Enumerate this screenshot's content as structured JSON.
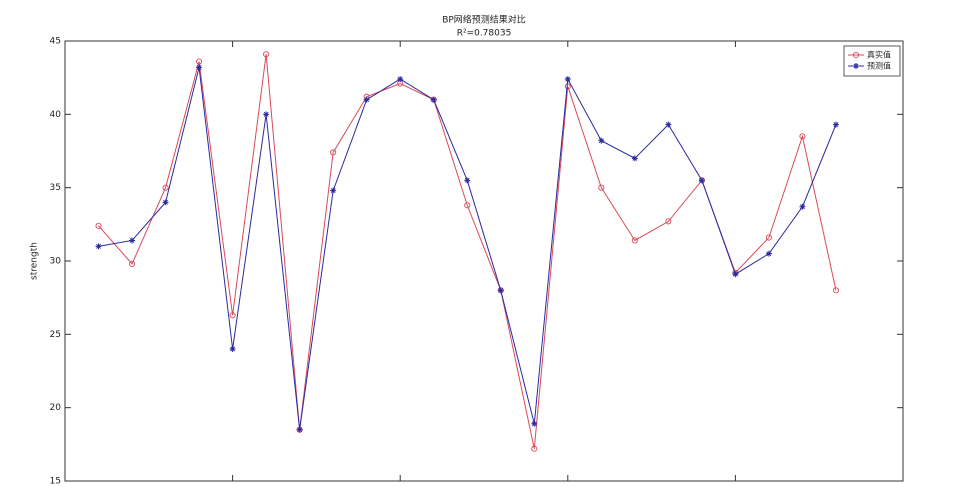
{
  "chart_data": {
    "type": "line",
    "title": "BP网络预测结果对比",
    "subtitle": "R²=0.78035",
    "y_label": "strength",
    "x": [
      1,
      2,
      3,
      4,
      5,
      6,
      7,
      8,
      9,
      10,
      11,
      12,
      13,
      14,
      15,
      16,
      17,
      18,
      19,
      20,
      21,
      22,
      23
    ],
    "series": [
      {
        "name": "真实值",
        "color": "#d9495a",
        "marker": "circle",
        "values": [
          32.4,
          29.8,
          35.0,
          43.6,
          26.3,
          44.1,
          18.5,
          37.4,
          41.2,
          42.1,
          41.0,
          33.8,
          28.0,
          17.2,
          41.9,
          35.0,
          31.4,
          32.7,
          35.5,
          29.2,
          31.6,
          38.5,
          28.0
        ]
      },
      {
        "name": "预测值",
        "color": "#2a2aa0",
        "marker": "star",
        "values": [
          31.0,
          31.4,
          34.0,
          43.2,
          24.0,
          40.0,
          18.5,
          34.8,
          41.0,
          42.4,
          41.0,
          35.5,
          28.0,
          18.9,
          42.4,
          38.2,
          37.0,
          39.3,
          35.5,
          29.1,
          30.5,
          33.7,
          39.3
        ]
      }
    ],
    "xlim": [
      0,
      25
    ],
    "xticks": [
      0,
      5,
      10,
      15,
      20,
      25
    ],
    "ylim": [
      15,
      45
    ],
    "yticks": [
      15,
      20,
      25,
      30,
      35,
      40,
      45
    ],
    "grid": false,
    "legend": "upper right"
  }
}
